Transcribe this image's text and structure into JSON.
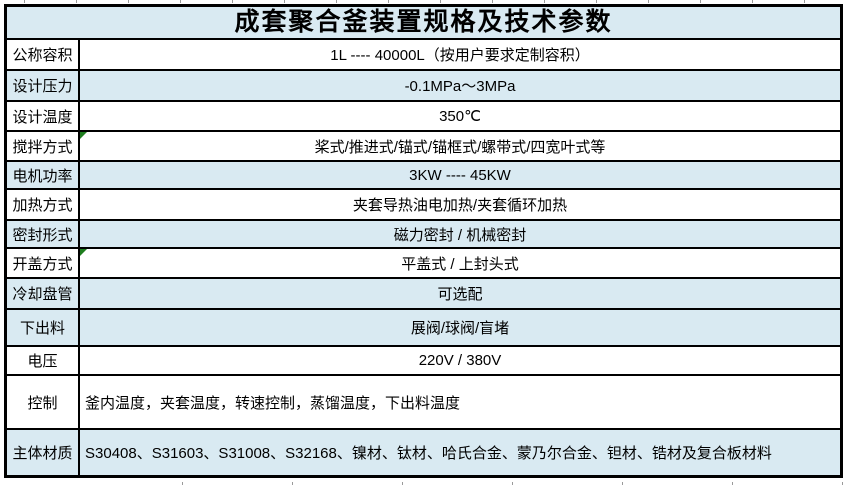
{
  "title": "成套聚合釜装置规格及技术参数",
  "colors": {
    "row_shade": "#d9eaf2",
    "row_plain": "#ffffff",
    "border": "#000000",
    "flag_green": "#1e7d1e",
    "tick_gray": "#9a9a9a",
    "text": "#000000"
  },
  "table": {
    "rows": [
      {
        "name": "nominal-volume",
        "label": "公称容积",
        "value": "1L ---- 40000L（按用户要求定制容积）",
        "shaded": false,
        "align": "center",
        "flag": false
      },
      {
        "name": "design-pressure",
        "label": "设计压力",
        "value": "-0.1MPa～3MPa",
        "shaded": true,
        "align": "center",
        "flag": false
      },
      {
        "name": "design-temperature",
        "label": "设计温度",
        "value": "350℃",
        "shaded": false,
        "align": "center",
        "flag": false
      },
      {
        "name": "stirring-type",
        "label": "搅拌方式",
        "value": "桨式/推进式/锚式/锚框式/螺带式/四宽叶式等",
        "shaded": false,
        "align": "center",
        "flag": true
      },
      {
        "name": "motor-power",
        "label": "电机功率",
        "value": "3KW ---- 45KW",
        "shaded": true,
        "align": "center",
        "flag": false
      },
      {
        "name": "heating-type",
        "label": "加热方式",
        "value": "夹套导热油电加热/夹套循环加热",
        "shaded": false,
        "align": "center",
        "flag": false
      },
      {
        "name": "seal-type",
        "label": "密封形式",
        "value": "磁力密封 / 机械密封",
        "shaded": true,
        "align": "center",
        "flag": false
      },
      {
        "name": "cover-type",
        "label": "开盖方式",
        "value": "平盖式 / 上封头式",
        "shaded": false,
        "align": "center",
        "flag": true
      },
      {
        "name": "cooling-coil",
        "label": "冷却盘管",
        "value": "可选配",
        "shaded": true,
        "align": "center",
        "flag": false
      },
      {
        "name": "bottom-discharge",
        "label": "下出料",
        "value": "展阀/球阀/盲堵",
        "shaded": true,
        "align": "center",
        "flag": false
      },
      {
        "name": "voltage",
        "label": "电压",
        "value": "220V / 380V",
        "shaded": false,
        "align": "center",
        "flag": false
      },
      {
        "name": "control",
        "label": "控制",
        "value": "釜内温度，夹套温度，转速控制，蒸馏温度，下出料温度",
        "shaded": false,
        "align": "left",
        "flag": false
      },
      {
        "name": "main-material",
        "label": "主体材质",
        "value": "S30408、S31603、S31008、S32168、镍材、钛材、哈氏合金、蒙乃尔合金、钽材、锆材及复合板材料",
        "shaded": true,
        "align": "left",
        "flag": false
      }
    ]
  }
}
